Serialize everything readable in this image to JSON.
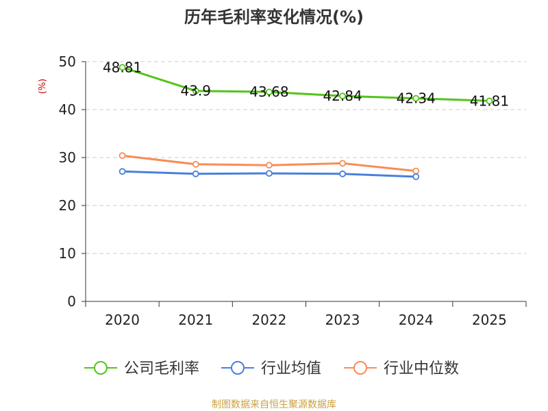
{
  "chart_data": {
    "type": "line",
    "title": "历年毛利率变化情况(%)",
    "xlabel": "",
    "ylabel": "(%)",
    "categories": [
      "2020",
      "2021",
      "2022",
      "2023",
      "2024",
      "2025"
    ],
    "ylim": [
      0,
      50
    ],
    "yticks": [
      0,
      10,
      20,
      30,
      40,
      50
    ],
    "grid": true,
    "legend_position": "bottom",
    "series": [
      {
        "name": "公司毛利率",
        "color": "#52c41a",
        "values": [
          48.81,
          43.9,
          43.68,
          42.84,
          42.34,
          41.81
        ],
        "labels": [
          "48.81",
          "43.9",
          "43.68",
          "42.84",
          "42.34",
          "41.81"
        ]
      },
      {
        "name": "行业均值",
        "color": "#4a7fdc",
        "values": [
          27.1,
          26.6,
          26.7,
          26.6,
          26.0,
          null
        ]
      },
      {
        "name": "行业中位数",
        "color": "#f88c55",
        "values": [
          30.4,
          28.6,
          28.4,
          28.8,
          27.2,
          null
        ]
      }
    ],
    "source": "制图数据来自恒生聚源数据库"
  },
  "colors": {
    "ylabel": "#cc0000",
    "source": "#c8a040",
    "grid": "#cccccc",
    "axis": "#333333"
  }
}
